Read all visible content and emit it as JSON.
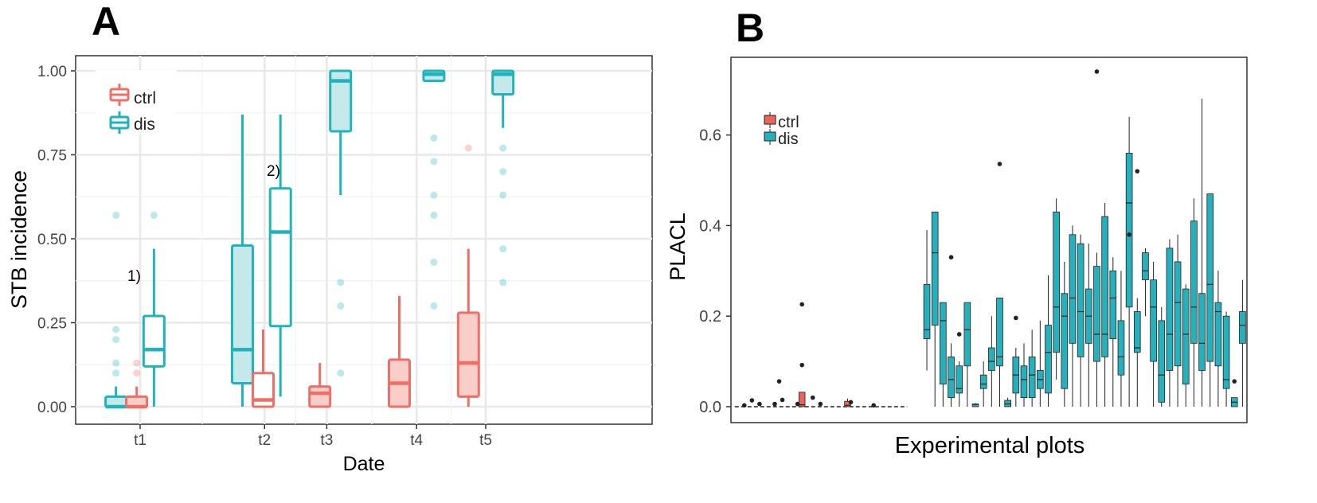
{
  "colors": {
    "ctrl": "#EF6F66",
    "dis": "#1FB3BD",
    "ctrl_fill": "#F9CDC8",
    "dis_fill": "#C5E8EA",
    "grid": "#e8e8e8",
    "axis_text": "#444444",
    "box_fill_b_ctrl": "#E8645C",
    "box_fill_b_dis": "#27B0BC",
    "outlier_b": "#222222"
  },
  "chart_data": [
    {
      "panel": "A",
      "type": "box",
      "ylabel": "STB incidence",
      "xlabel": "Date",
      "ylim": [
        0,
        1
      ],
      "yticks": [
        "0.00",
        "0.25",
        "0.50",
        "0.75",
        "1.00"
      ],
      "xticks": [
        {
          "label": "t1",
          "day": 1
        },
        {
          "label": "t2",
          "day": 2.8
        },
        {
          "label": "t3",
          "day": 3.7
        },
        {
          "label": "t4",
          "day": 5.0
        },
        {
          "label": "t5",
          "day": 6.0
        }
      ],
      "legend": {
        "position": "top-left",
        "entries": [
          "ctrl",
          "dis"
        ]
      },
      "boxes": [
        {
          "group": "dis",
          "x": 0.65,
          "q1": 0.0,
          "median": 0.0,
          "q3": 0.03,
          "whislo": 0.0,
          "whishi": 0.06,
          "filled": true,
          "outliers": [
            0.1,
            0.13,
            0.2,
            0.23,
            0.57
          ]
        },
        {
          "group": "ctrl",
          "x": 0.95,
          "q1": 0.0,
          "median": 0.0,
          "q3": 0.03,
          "whislo": 0.0,
          "whishi": 0.06,
          "filled": true,
          "outliers": [
            0.1,
            0.13
          ]
        },
        {
          "group": "dis",
          "x": 1.2,
          "q1": 0.12,
          "median": 0.17,
          "q3": 0.27,
          "whislo": 0.0,
          "whishi": 0.47,
          "filled": false,
          "outliers": [
            0.57
          ]
        },
        {
          "group": "dis",
          "x": 2.48,
          "q1": 0.07,
          "median": 0.17,
          "q3": 0.48,
          "whislo": 0.0,
          "whishi": 0.87,
          "filled": true,
          "outliers": []
        },
        {
          "group": "ctrl",
          "x": 2.78,
          "q1": 0.0,
          "median": 0.02,
          "q3": 0.1,
          "whislo": 0.0,
          "whishi": 0.23,
          "filled": false,
          "outliers": []
        },
        {
          "group": "dis",
          "x": 3.03,
          "q1": 0.24,
          "median": 0.52,
          "q3": 0.65,
          "whislo": 0.03,
          "whishi": 0.87,
          "filled": false,
          "outliers": []
        },
        {
          "group": "ctrl",
          "x": 3.6,
          "q1": 0.0,
          "median": 0.04,
          "q3": 0.06,
          "whislo": 0.0,
          "whishi": 0.13,
          "filled": true,
          "outliers": []
        },
        {
          "group": "dis",
          "x": 3.9,
          "q1": 0.82,
          "median": 0.97,
          "q3": 1.0,
          "whislo": 0.63,
          "whishi": 1.0,
          "filled": true,
          "outliers": [
            0.1,
            0.3,
            0.37
          ]
        },
        {
          "group": "ctrl",
          "x": 4.75,
          "q1": 0.0,
          "median": 0.07,
          "q3": 0.14,
          "whislo": 0.0,
          "whishi": 0.33,
          "filled": true,
          "outliers": []
        },
        {
          "group": "dis",
          "x": 5.25,
          "q1": 0.97,
          "median": 0.99,
          "q3": 1.0,
          "whislo": 0.97,
          "whishi": 1.0,
          "filled": true,
          "outliers": [
            0.3,
            0.43,
            0.57,
            0.63,
            0.73,
            0.8
          ]
        },
        {
          "group": "ctrl",
          "x": 5.75,
          "q1": 0.03,
          "median": 0.13,
          "q3": 0.28,
          "whislo": 0.0,
          "whishi": 0.47,
          "filled": true,
          "outliers": [
            0.77
          ]
        },
        {
          "group": "dis",
          "x": 6.25,
          "q1": 0.93,
          "median": 0.99,
          "q3": 1.0,
          "whislo": 0.83,
          "whishi": 1.0,
          "filled": true,
          "outliers": [
            0.37,
            0.47,
            0.63,
            0.7,
            0.77
          ]
        }
      ],
      "annotations": [
        {
          "text": "1)",
          "x": 0.95,
          "y": 0.38
        },
        {
          "text": "2)",
          "x": 2.78,
          "y": 0.69
        }
      ]
    },
    {
      "panel": "B",
      "type": "box",
      "ylabel": "PLACL",
      "xlabel": "Experimental plots",
      "ylim": [
        0,
        0.74
      ],
      "yticks": [
        "0.0",
        "0.2",
        "0.4",
        "0.6"
      ],
      "legend": {
        "position": "top-left",
        "entries": [
          "ctrl",
          "dis"
        ]
      },
      "baseline": 0,
      "ctrl_outliers": [
        {
          "i": 0,
          "y": 0.003
        },
        {
          "i": 1,
          "y": 0.014
        },
        {
          "i": 2,
          "y": 0.006
        },
        {
          "i": 4,
          "y": 0.006
        },
        {
          "i": 5,
          "y": 0.015
        },
        {
          "i": 5,
          "y": 0.056
        },
        {
          "i": 7,
          "y": 0.006
        },
        {
          "i": 8,
          "y": 0.092
        },
        {
          "i": 8,
          "y": 0.226
        },
        {
          "i": 9,
          "y": 0.02
        },
        {
          "i": 10,
          "y": 0.006
        },
        {
          "i": 14,
          "y": 0.01
        },
        {
          "i": 17,
          "y": 0.003
        }
      ],
      "ctrl_boxes": [
        {
          "i": 8,
          "q1": 0.0,
          "median": 0.004,
          "q3": 0.032,
          "whislo": 0.0,
          "whishi": 0.032
        },
        {
          "i": 14,
          "q1": 0.0,
          "median": 0.003,
          "q3": 0.012,
          "whislo": 0.0,
          "whishi": 0.018
        }
      ],
      "dis_boxes": [
        {
          "q1": 0.15,
          "median": 0.17,
          "q3": 0.27,
          "whislo": 0.08,
          "whishi": 0.39
        },
        {
          "q1": 0.18,
          "median": 0.34,
          "q3": 0.43,
          "whislo": 0.0,
          "whishi": 0.43
        },
        {
          "q1": 0.05,
          "median": 0.19,
          "q3": 0.23,
          "whislo": 0.0,
          "whishi": 0.23
        },
        {
          "q1": 0.02,
          "median": 0.06,
          "q3": 0.11,
          "whislo": 0.0,
          "whishi": 0.14
        },
        {
          "q1": 0.03,
          "median": 0.04,
          "q3": 0.09,
          "whislo": 0.0,
          "whishi": 0.1
        },
        {
          "q1": 0.09,
          "median": 0.17,
          "q3": 0.23,
          "whislo": 0.0,
          "whishi": 0.23
        },
        {
          "q1": 0.0,
          "median": 0.005,
          "q3": 0.006,
          "whislo": 0.0,
          "whishi": 0.008
        },
        {
          "q1": 0.04,
          "median": 0.05,
          "q3": 0.07,
          "whislo": 0.0,
          "whishi": 0.1
        },
        {
          "q1": 0.08,
          "median": 0.1,
          "q3": 0.13,
          "whislo": 0.0,
          "whishi": 0.2
        },
        {
          "q1": 0.09,
          "median": 0.11,
          "q3": 0.24,
          "whislo": 0.0,
          "whishi": 0.24
        },
        {
          "q1": 0.0,
          "median": 0.006,
          "q3": 0.014,
          "whislo": 0.0,
          "whishi": 0.02
        },
        {
          "q1": 0.03,
          "median": 0.07,
          "q3": 0.11,
          "whislo": 0.0,
          "whishi": 0.13
        },
        {
          "q1": 0.02,
          "median": 0.06,
          "q3": 0.09,
          "whislo": 0.0,
          "whishi": 0.14
        },
        {
          "q1": 0.02,
          "median": 0.07,
          "q3": 0.11,
          "whislo": 0.0,
          "whishi": 0.17
        },
        {
          "q1": 0.04,
          "median": 0.06,
          "q3": 0.08,
          "whislo": 0.0,
          "whishi": 0.19
        },
        {
          "q1": 0.03,
          "median": 0.12,
          "q3": 0.18,
          "whislo": 0.0,
          "whishi": 0.29
        },
        {
          "q1": 0.12,
          "median": 0.22,
          "q3": 0.43,
          "whislo": 0.06,
          "whishi": 0.46
        },
        {
          "q1": 0.04,
          "median": 0.2,
          "q3": 0.25,
          "whislo": 0.0,
          "whishi": 0.32
        },
        {
          "q1": 0.14,
          "median": 0.24,
          "q3": 0.38,
          "whislo": 0.0,
          "whishi": 0.4
        },
        {
          "q1": 0.11,
          "median": 0.21,
          "q3": 0.36,
          "whislo": 0.0,
          "whishi": 0.38
        },
        {
          "q1": 0.14,
          "median": 0.2,
          "q3": 0.26,
          "whislo": 0.0,
          "whishi": 0.36
        },
        {
          "q1": 0.1,
          "median": 0.16,
          "q3": 0.31,
          "whislo": 0.0,
          "whishi": 0.34
        },
        {
          "q1": 0.11,
          "median": 0.16,
          "q3": 0.42,
          "whislo": 0.0,
          "whishi": 0.45
        },
        {
          "q1": 0.15,
          "median": 0.24,
          "q3": 0.3,
          "whislo": 0.0,
          "whishi": 0.33
        },
        {
          "q1": 0.07,
          "median": 0.11,
          "q3": 0.19,
          "whislo": 0.0,
          "whishi": 0.3
        },
        {
          "q1": 0.22,
          "median": 0.45,
          "q3": 0.56,
          "whislo": 0.0,
          "whishi": 0.64
        },
        {
          "q1": 0.12,
          "median": 0.13,
          "q3": 0.21,
          "whislo": 0.0,
          "whishi": 0.24
        },
        {
          "q1": 0.28,
          "median": 0.3,
          "q3": 0.34,
          "whislo": 0.2,
          "whishi": 0.35
        },
        {
          "q1": 0.1,
          "median": 0.22,
          "q3": 0.28,
          "whislo": 0.0,
          "whishi": 0.32
        },
        {
          "q1": 0.01,
          "median": 0.07,
          "q3": 0.19,
          "whislo": 0.0,
          "whishi": 0.22
        },
        {
          "q1": 0.08,
          "median": 0.16,
          "q3": 0.35,
          "whislo": 0.0,
          "whishi": 0.37
        },
        {
          "q1": 0.09,
          "median": 0.23,
          "q3": 0.32,
          "whislo": 0.0,
          "whishi": 0.38
        },
        {
          "q1": 0.05,
          "median": 0.16,
          "q3": 0.26,
          "whislo": 0.0,
          "whishi": 0.27
        },
        {
          "q1": 0.14,
          "median": 0.22,
          "q3": 0.41,
          "whislo": 0.0,
          "whishi": 0.46
        },
        {
          "q1": 0.08,
          "median": 0.14,
          "q3": 0.25,
          "whislo": 0.0,
          "whishi": 0.68
        },
        {
          "q1": 0.1,
          "median": 0.27,
          "q3": 0.47,
          "whislo": 0.0,
          "whishi": 0.47
        },
        {
          "q1": 0.09,
          "median": 0.21,
          "q3": 0.23,
          "whislo": 0.0,
          "whishi": 0.3
        },
        {
          "q1": 0.04,
          "median": 0.06,
          "q3": 0.2,
          "whislo": 0.0,
          "whishi": 0.21
        },
        {
          "q1": 0.0,
          "median": 0.01,
          "q3": 0.02,
          "whislo": 0.0,
          "whishi": 0.02
        },
        {
          "q1": 0.14,
          "median": 0.18,
          "q3": 0.21,
          "whislo": 0.0,
          "whishi": 0.28
        }
      ],
      "dis_outliers": [
        {
          "i": 3,
          "y": 0.33
        },
        {
          "i": 4,
          "y": 0.16
        },
        {
          "i": 9,
          "y": 0.536
        },
        {
          "i": 11,
          "y": 0.196
        },
        {
          "i": 21,
          "y": 0.74
        },
        {
          "i": 25,
          "y": 0.38
        },
        {
          "i": 26,
          "y": 0.52
        },
        {
          "i": 38,
          "y": 0.056
        }
      ],
      "dis_x_start": 0.62,
      "n_ctrl_slots": 22
    }
  ],
  "panels": {
    "a_letter": "A",
    "b_letter": "B",
    "a_annotation_1": "1)",
    "a_annotation_2": "2)"
  }
}
